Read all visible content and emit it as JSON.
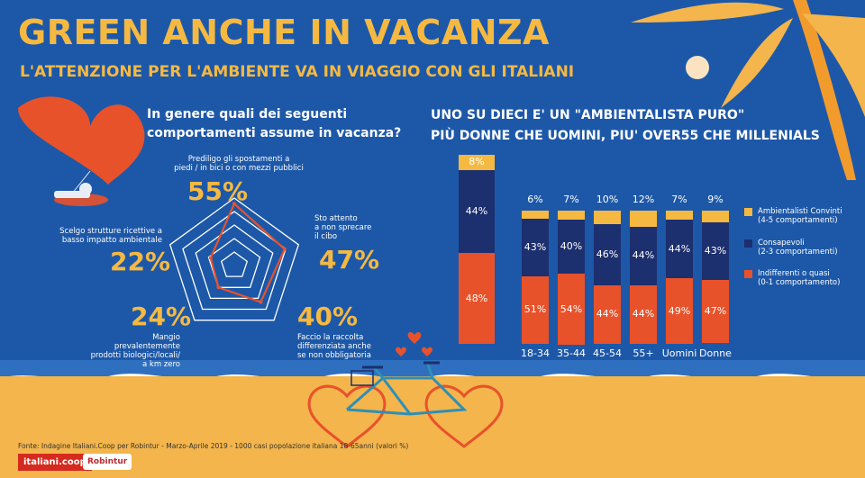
{
  "title": "GREEN ANCHE IN VACANZA",
  "subtitle": "L'ATTENZIONE PER L'AMBIENTE VA IN VIAGGIO CON GLI ITALIANI",
  "radar": {
    "question_line1": "In genere quali dei seguenti",
    "question_line2": "comportamenti assume in vacanza?",
    "items": [
      {
        "pct": "55%",
        "desc": [
          "Prediligo gli spostamenti a",
          "piedi / in bici o con mezzi pubblici"
        ]
      },
      {
        "pct": "47%",
        "desc": [
          "Sto attento",
          "a non sprecare",
          "il cibo"
        ]
      },
      {
        "pct": "40%",
        "desc": [
          "Faccio la raccolta",
          "differenziata anche",
          "se non obbligatoria"
        ]
      },
      {
        "pct": "24%",
        "desc": [
          "Mangio prevalentemente",
          "prodotti biologici/locali/",
          "a km zero"
        ]
      },
      {
        "pct": "22%",
        "desc": [
          "Scelgo strutture ricettive a",
          "basso impatto ambientale"
        ]
      }
    ]
  },
  "bars_header": {
    "line1": "UNO SU DIECI E' UN \"AMBIENTALISTA PURO\"",
    "line2": "PIÙ DONNE CHE UOMINI, PIU' OVER55 CHE MILLENIALS"
  },
  "legend": [
    {
      "label": [
        "Ambientalisti Convinti",
        "(4-5 comportamenti)"
      ],
      "color": "#f5b942"
    },
    {
      "label": [
        "Consapevoli",
        "(2-3 comportamenti)"
      ],
      "color": "#1c2f6e"
    },
    {
      "label": [
        "Indifferenti o quasi",
        "(0-1 comportamento)"
      ],
      "color": "#e8522b"
    }
  ],
  "chart_data": [
    {
      "type": "radar",
      "categories": [
        "Prediligo gli spostamenti a piedi / in bici o con mezzi pubblici",
        "Sto attento a non sprecare il cibo",
        "Faccio la raccolta differenziata anche se non obbligatoria",
        "Mangio prevalentemente prodotti biologici/locali/ a km zero",
        "Scelgo strutture ricettive a basso impatto ambientale"
      ],
      "values": [
        55,
        47,
        40,
        24,
        22
      ],
      "colors": {
        "line": "#e8522b",
        "web": "#ffffff"
      }
    },
    {
      "type": "bar",
      "stacked": true,
      "total": [
        {
          "label": "8%",
          "value": 8
        },
        {
          "label": "44%",
          "value": 44
        },
        {
          "label": "48%",
          "value": 48
        }
      ],
      "categories": [
        "18-34",
        "35-44",
        "45-54",
        "55+",
        "Uomini",
        "Donne"
      ],
      "series": [
        {
          "name": "Ambientalisti Convinti (4-5 comportamenti)",
          "values": [
            6,
            7,
            10,
            12,
            7,
            9
          ],
          "color": "#f5b942"
        },
        {
          "name": "Consapevoli (2-3 comportamenti)",
          "values": [
            43,
            40,
            46,
            44,
            44,
            43
          ],
          "color": "#1c2f6e"
        },
        {
          "name": "Indifferenti o quasi (0-1 comportamento)",
          "values": [
            51,
            54,
            44,
            44,
            49,
            47
          ],
          "color": "#e8522b"
        }
      ],
      "ylim": [
        0,
        100
      ]
    }
  ],
  "source": "Fonte: Indagine Italiani.Coop per Robintur - Marzo-Aprile 2019 - 1000 casi popolazione italiana 18-65anni (valori %)",
  "logos": {
    "coop": "italiani.coop",
    "robintur": "Robintur"
  }
}
